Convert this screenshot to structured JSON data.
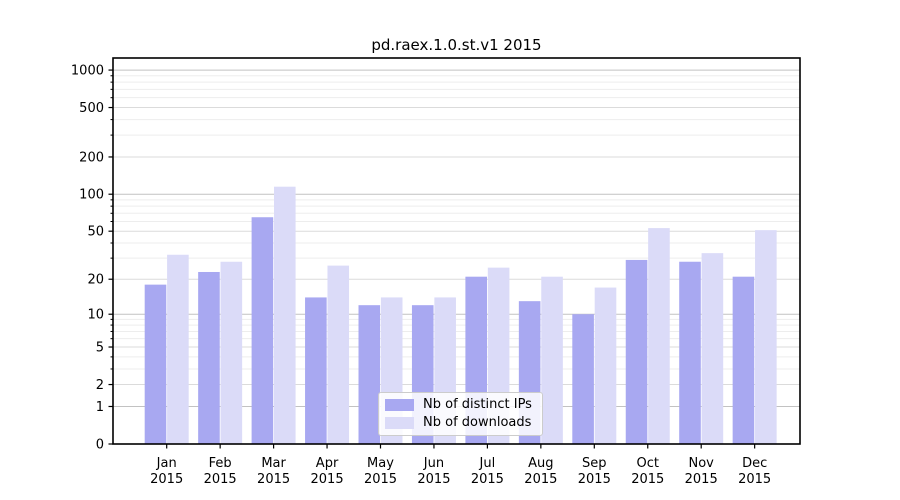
{
  "chart_data": {
    "type": "bar",
    "title": "pd.raex.1.0.st.v1 2015",
    "categories": [
      "Jan",
      "Feb",
      "Mar",
      "Apr",
      "May",
      "Jun",
      "Jul",
      "Aug",
      "Sep",
      "Oct",
      "Nov",
      "Dec"
    ],
    "category_year": "2015",
    "series": [
      {
        "name": "Nb of distinct IPs",
        "color": "#a8a8f1",
        "values": [
          18,
          23,
          65,
          14,
          12,
          12,
          21,
          13,
          10,
          29,
          28,
          21
        ]
      },
      {
        "name": "Nb of downloads",
        "color": "#dbdbf8",
        "values": [
          32,
          28,
          115,
          26,
          14,
          14,
          25,
          21,
          17,
          53,
          33,
          51
        ]
      }
    ],
    "xlabel": "",
    "ylabel": "",
    "yscale": "log1p",
    "ylim": [
      0,
      1250
    ],
    "yticks": [
      0,
      1,
      2,
      5,
      10,
      20,
      50,
      100,
      200,
      500,
      1000
    ],
    "grid": true,
    "legend_position": "lower center",
    "colors": {
      "background": "#ffffff",
      "spine": "#000000",
      "major_grid": "#c2c2c2",
      "labeled_grid": "#dbdbdb",
      "minor_grid": "#ededed",
      "text": "#000000"
    }
  }
}
